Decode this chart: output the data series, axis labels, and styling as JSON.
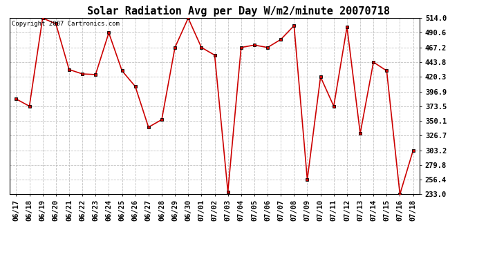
{
  "title": "Solar Radiation Avg per Day W/m2/minute 20070718",
  "copyright": "Copyright 2007 Cartronics.com",
  "dates": [
    "06/17",
    "06/18",
    "06/19",
    "06/20",
    "06/21",
    "06/22",
    "06/23",
    "06/24",
    "06/25",
    "06/26",
    "06/27",
    "06/28",
    "06/29",
    "06/30",
    "07/01",
    "07/02",
    "07/03",
    "07/04",
    "07/05",
    "07/06",
    "07/07",
    "07/08",
    "07/09",
    "07/10",
    "07/11",
    "07/12",
    "07/13",
    "07/14",
    "07/15",
    "07/16",
    "07/18"
  ],
  "values": [
    385.0,
    373.5,
    514.0,
    505.0,
    432.0,
    425.0,
    424.0,
    490.6,
    430.0,
    405.0,
    340.0,
    352.0,
    467.2,
    514.0,
    467.2,
    455.0,
    237.0,
    467.2,
    471.0,
    467.2,
    480.0,
    502.0,
    256.4,
    420.3,
    373.5,
    500.0,
    330.0,
    443.8,
    430.0,
    233.0,
    303.2
  ],
  "y_ticks": [
    233.0,
    256.4,
    279.8,
    303.2,
    326.7,
    350.1,
    373.5,
    396.9,
    420.3,
    443.8,
    467.2,
    490.6,
    514.0
  ],
  "line_color": "#cc0000",
  "marker_color": "#000000",
  "marker_face": "#cc0000",
  "bg_color": "#ffffff",
  "grid_color": "#bbbbbb",
  "title_fontsize": 11,
  "copyright_fontsize": 6.5,
  "tick_fontsize": 7.5,
  "fig_width": 6.9,
  "fig_height": 3.75,
  "dpi": 100
}
